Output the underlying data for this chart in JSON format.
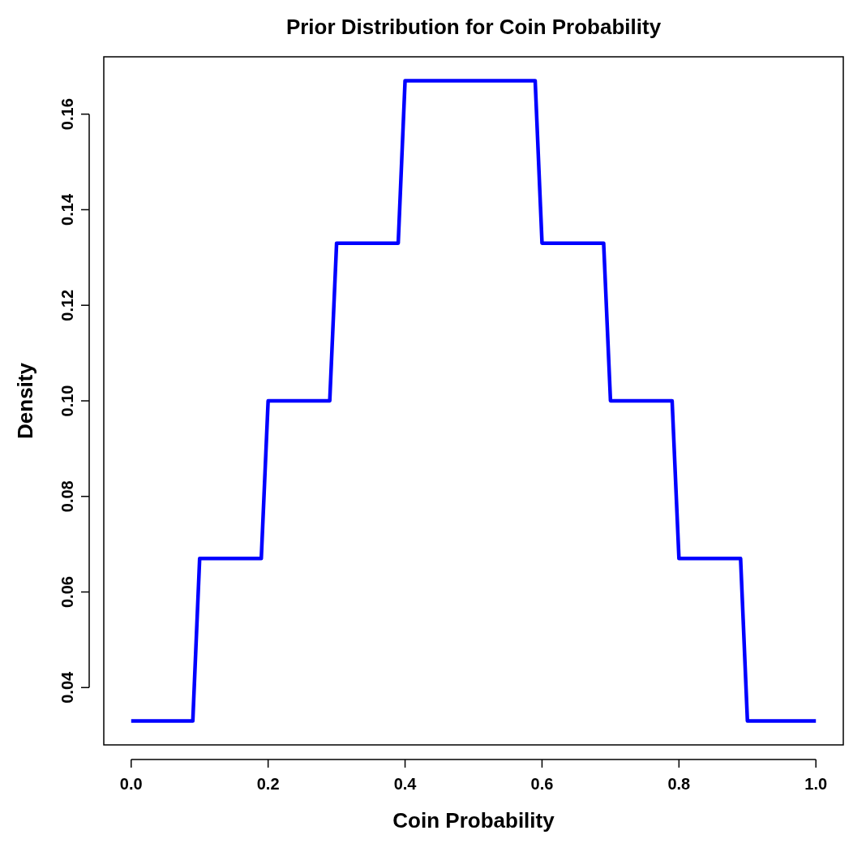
{
  "chart_data": {
    "type": "line",
    "title": "Prior Distribution for Coin Probability",
    "xlabel": "Coin Probability",
    "ylabel": "Density",
    "x": [
      0,
      0.09,
      0.1,
      0.19,
      0.2,
      0.29,
      0.3,
      0.39,
      0.4,
      0.59,
      0.6,
      0.69,
      0.7,
      0.79,
      0.8,
      0.89,
      0.9,
      1.0
    ],
    "series": [
      {
        "color": "#0000ff",
        "values": [
          0.033,
          0.033,
          0.067,
          0.067,
          0.1,
          0.1,
          0.133,
          0.133,
          0.167,
          0.167,
          0.133,
          0.133,
          0.1,
          0.1,
          0.067,
          0.067,
          0.033,
          0.033
        ]
      }
    ],
    "xlim": [
      -0.04,
      1.04
    ],
    "xticks": [
      {
        "value": 0,
        "label": "0.0"
      },
      0.2,
      0.4,
      0.6,
      0.8,
      {
        "value": 1,
        "label": "1.0"
      }
    ],
    "ylim": [
      0.028,
      0.172
    ],
    "yticks": [
      0.04,
      0.06,
      0.08,
      {
        "value": 0.1,
        "label": "0.10"
      },
      0.12,
      0.14,
      0.16
    ],
    "grid": false,
    "marker": "none",
    "line_style": "solid"
  }
}
